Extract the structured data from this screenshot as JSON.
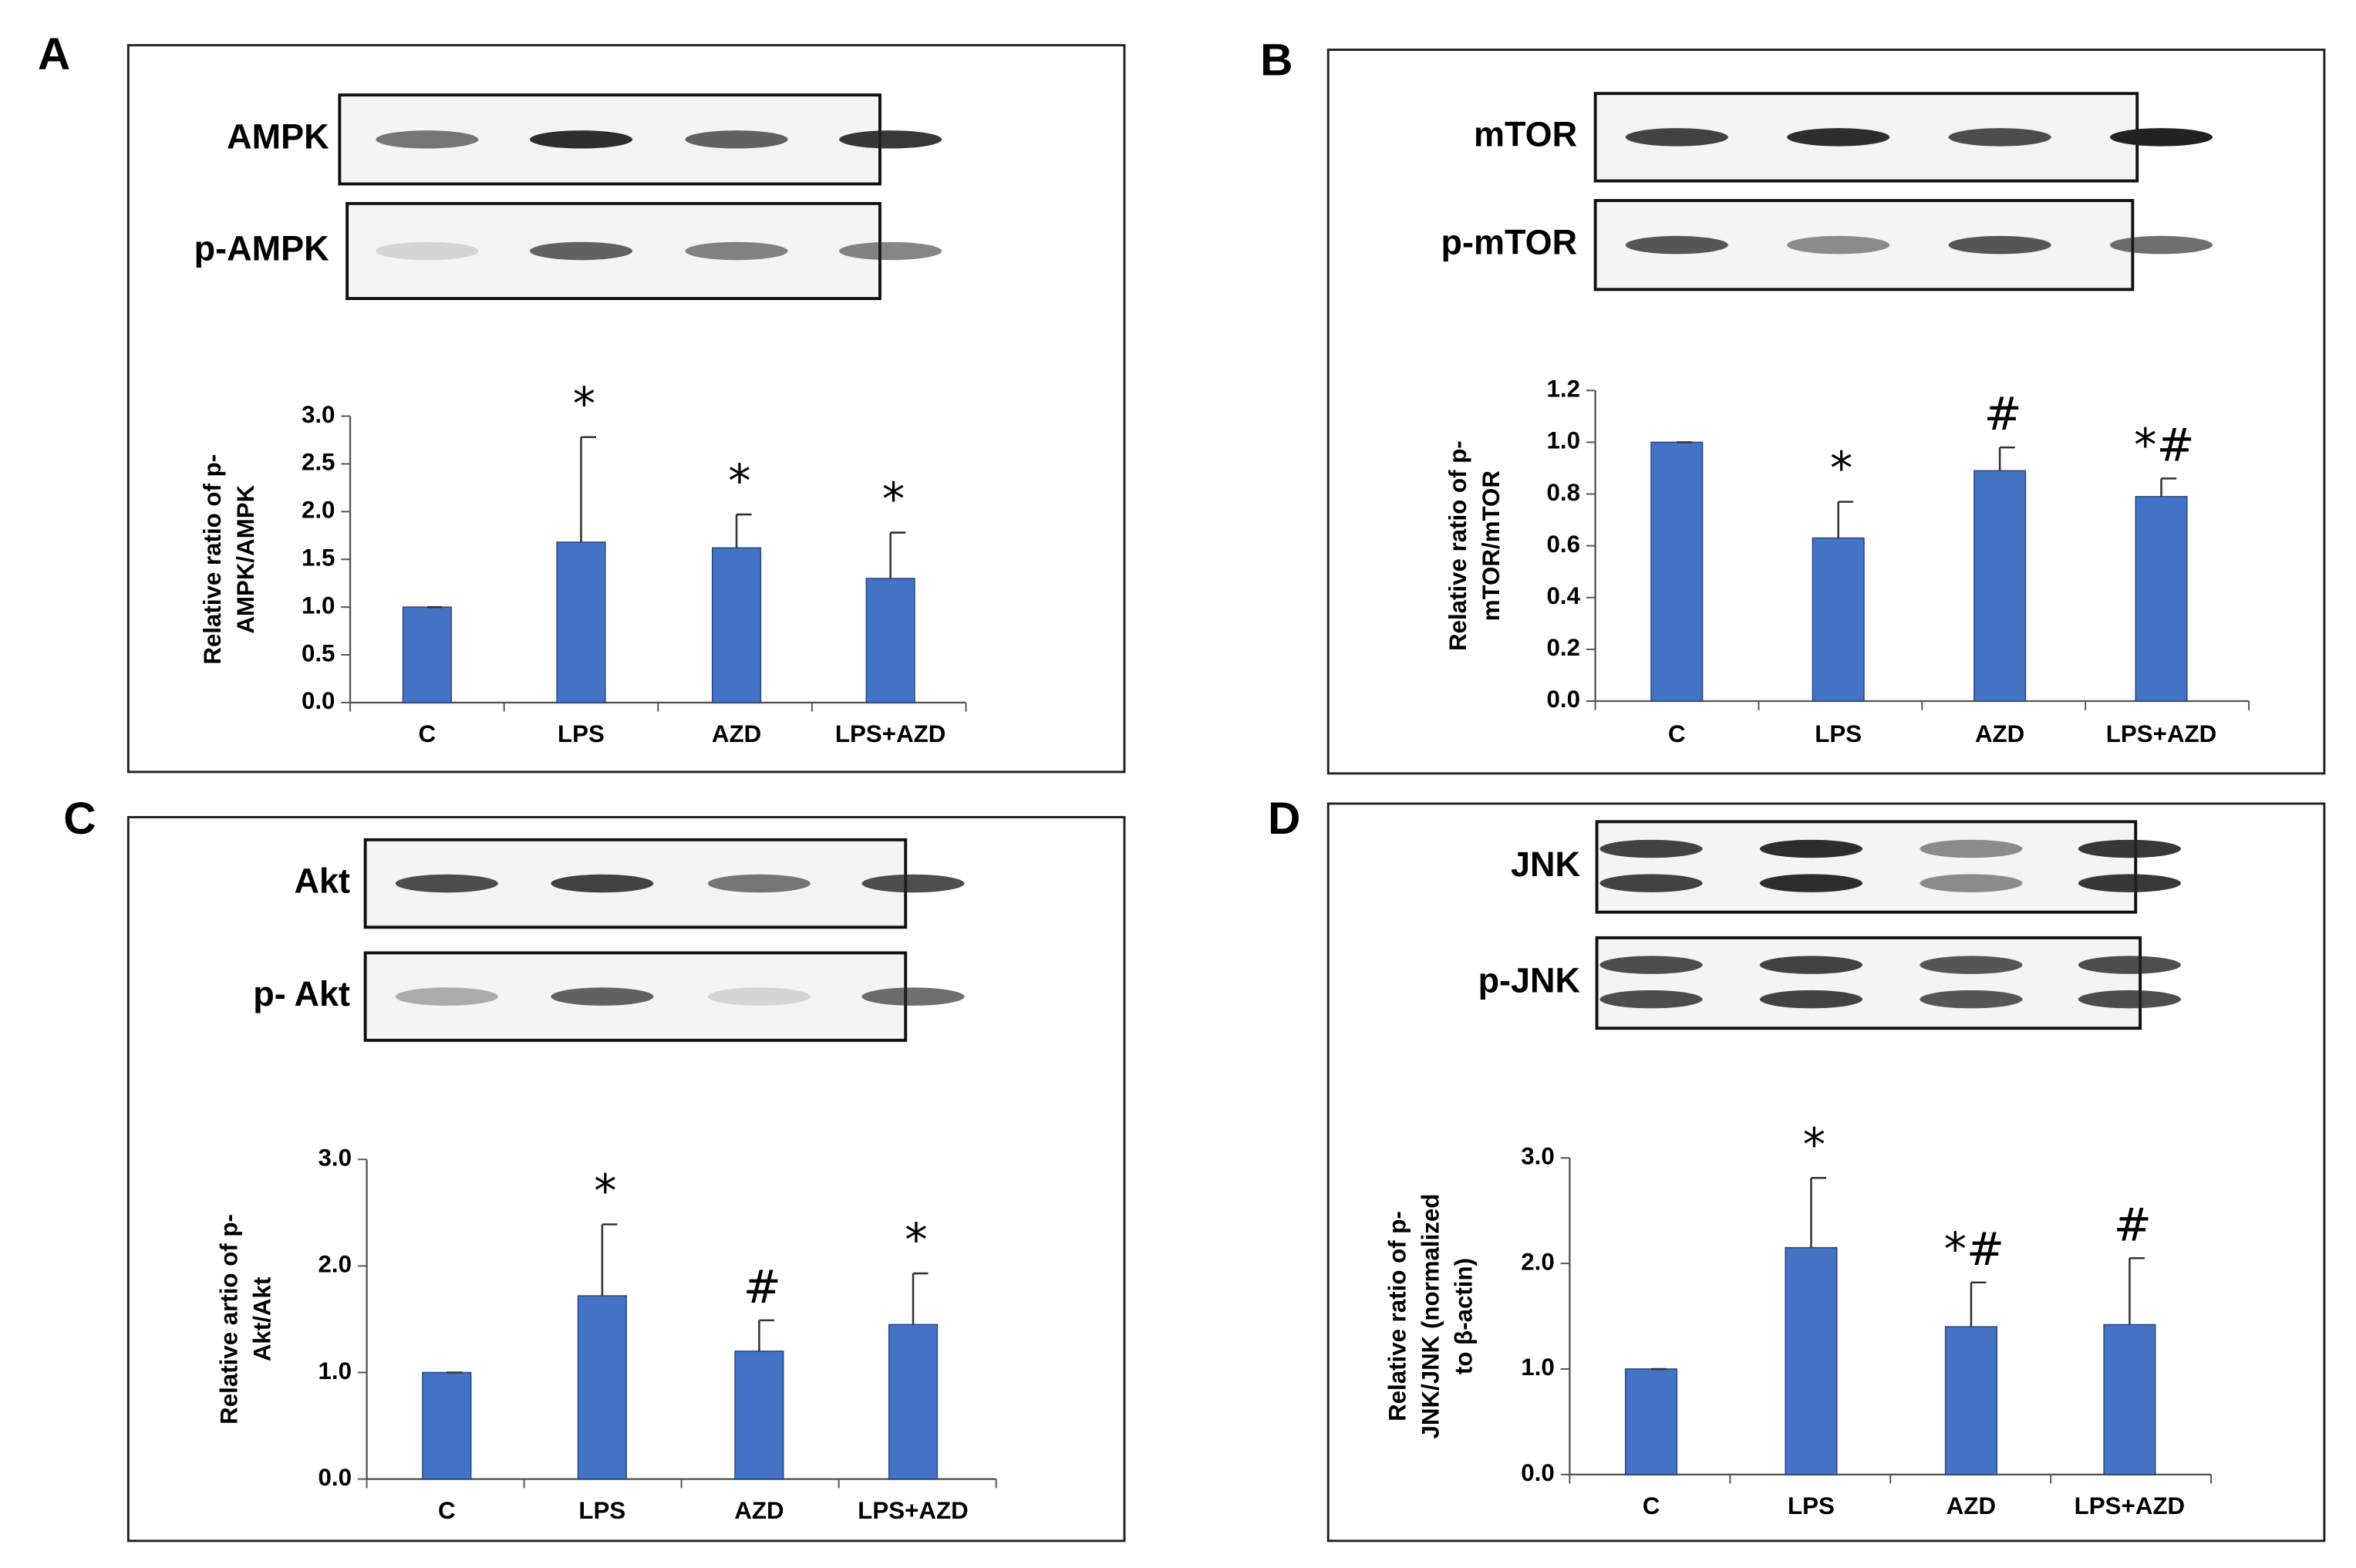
{
  "chart_data": [
    {
      "type": "bar",
      "panel": "A",
      "blots": [
        "AMPK",
        "p-AMPK"
      ],
      "ylabel": [
        "Relative ratio of p-",
        "AMPK/AMPK"
      ],
      "categories": [
        "C",
        "LPS",
        "AZD",
        "LPS+AZD"
      ],
      "values": [
        1.0,
        1.68,
        1.62,
        1.3
      ],
      "errors": [
        0,
        1.1,
        0.35,
        0.48
      ],
      "annotations": [
        null,
        "*",
        "*",
        "*"
      ],
      "color": "#4472c4",
      "ylim": [
        0,
        3
      ],
      "yticks": [
        {
          "value": 0,
          "label": "0.0"
        },
        {
          "value": 0.5,
          "label": "0.5"
        },
        {
          "value": 1,
          "label": "1.0"
        },
        {
          "value": 1.5,
          "label": "1.5"
        },
        {
          "value": 2,
          "label": "2.0"
        },
        {
          "value": 2.5,
          "label": "2.5"
        },
        {
          "value": 3,
          "label": "3.0"
        }
      ]
    },
    {
      "type": "bar",
      "panel": "B",
      "blots": [
        "mTOR",
        "p-mTOR"
      ],
      "ylabel": [
        "Relative ratio of p-",
        "mTOR/mTOR"
      ],
      "categories": [
        "C",
        "LPS",
        "AZD",
        "LPS+AZD"
      ],
      "values": [
        1.0,
        0.63,
        0.89,
        0.79
      ],
      "errors": [
        0,
        0.14,
        0.09,
        0.07
      ],
      "annotations": [
        null,
        "*",
        "#",
        "*#"
      ],
      "color": "#4472c4",
      "ylim": [
        0,
        1.2
      ],
      "yticks": [
        {
          "value": 0,
          "label": "0.0"
        },
        {
          "value": 0.2,
          "label": "0.2"
        },
        {
          "value": 0.4,
          "label": "0.4"
        },
        {
          "value": 0.6,
          "label": "0.6"
        },
        {
          "value": 0.8,
          "label": "0.8"
        },
        {
          "value": 1,
          "label": "1.0"
        },
        {
          "value": 1.2,
          "label": "1.2"
        }
      ]
    },
    {
      "type": "bar",
      "panel": "C",
      "blots": [
        "Akt",
        "p- Akt"
      ],
      "ylabel": [
        "Relative artio of p-",
        "Akt/Akt"
      ],
      "categories": [
        "C",
        "LPS",
        "AZD",
        "LPS+AZD"
      ],
      "values": [
        1.0,
        1.72,
        1.2,
        1.45
      ],
      "errors": [
        0,
        0.67,
        0.29,
        0.48
      ],
      "annotations": [
        null,
        "*",
        "#",
        "*"
      ],
      "color": "#4472c4",
      "ylim": [
        0,
        3
      ],
      "yticks": [
        {
          "value": 0,
          "label": "0.0"
        },
        {
          "value": 1,
          "label": "1.0"
        },
        {
          "value": 2,
          "label": "2.0"
        },
        {
          "value": 3,
          "label": "3.0"
        }
      ]
    },
    {
      "type": "bar",
      "panel": "D",
      "blots": [
        "JNK",
        "p-JNK"
      ],
      "ylabel": [
        "Relative ratio of p-",
        "JNK/JNK (normalized",
        "to β-actin)"
      ],
      "categories": [
        "C",
        "LPS",
        "AZD",
        "LPS+AZD"
      ],
      "values": [
        1.0,
        2.15,
        1.4,
        1.42
      ],
      "errors": [
        0,
        0.66,
        0.42,
        0.63
      ],
      "annotations": [
        null,
        "*",
        "*#",
        "#"
      ],
      "color": "#4472c4",
      "ylim": [
        0,
        3
      ],
      "yticks": [
        {
          "value": 0,
          "label": "0.0"
        },
        {
          "value": 1,
          "label": "1.0"
        },
        {
          "value": 2,
          "label": "2.0"
        },
        {
          "value": 3,
          "label": "3.0"
        }
      ]
    }
  ]
}
